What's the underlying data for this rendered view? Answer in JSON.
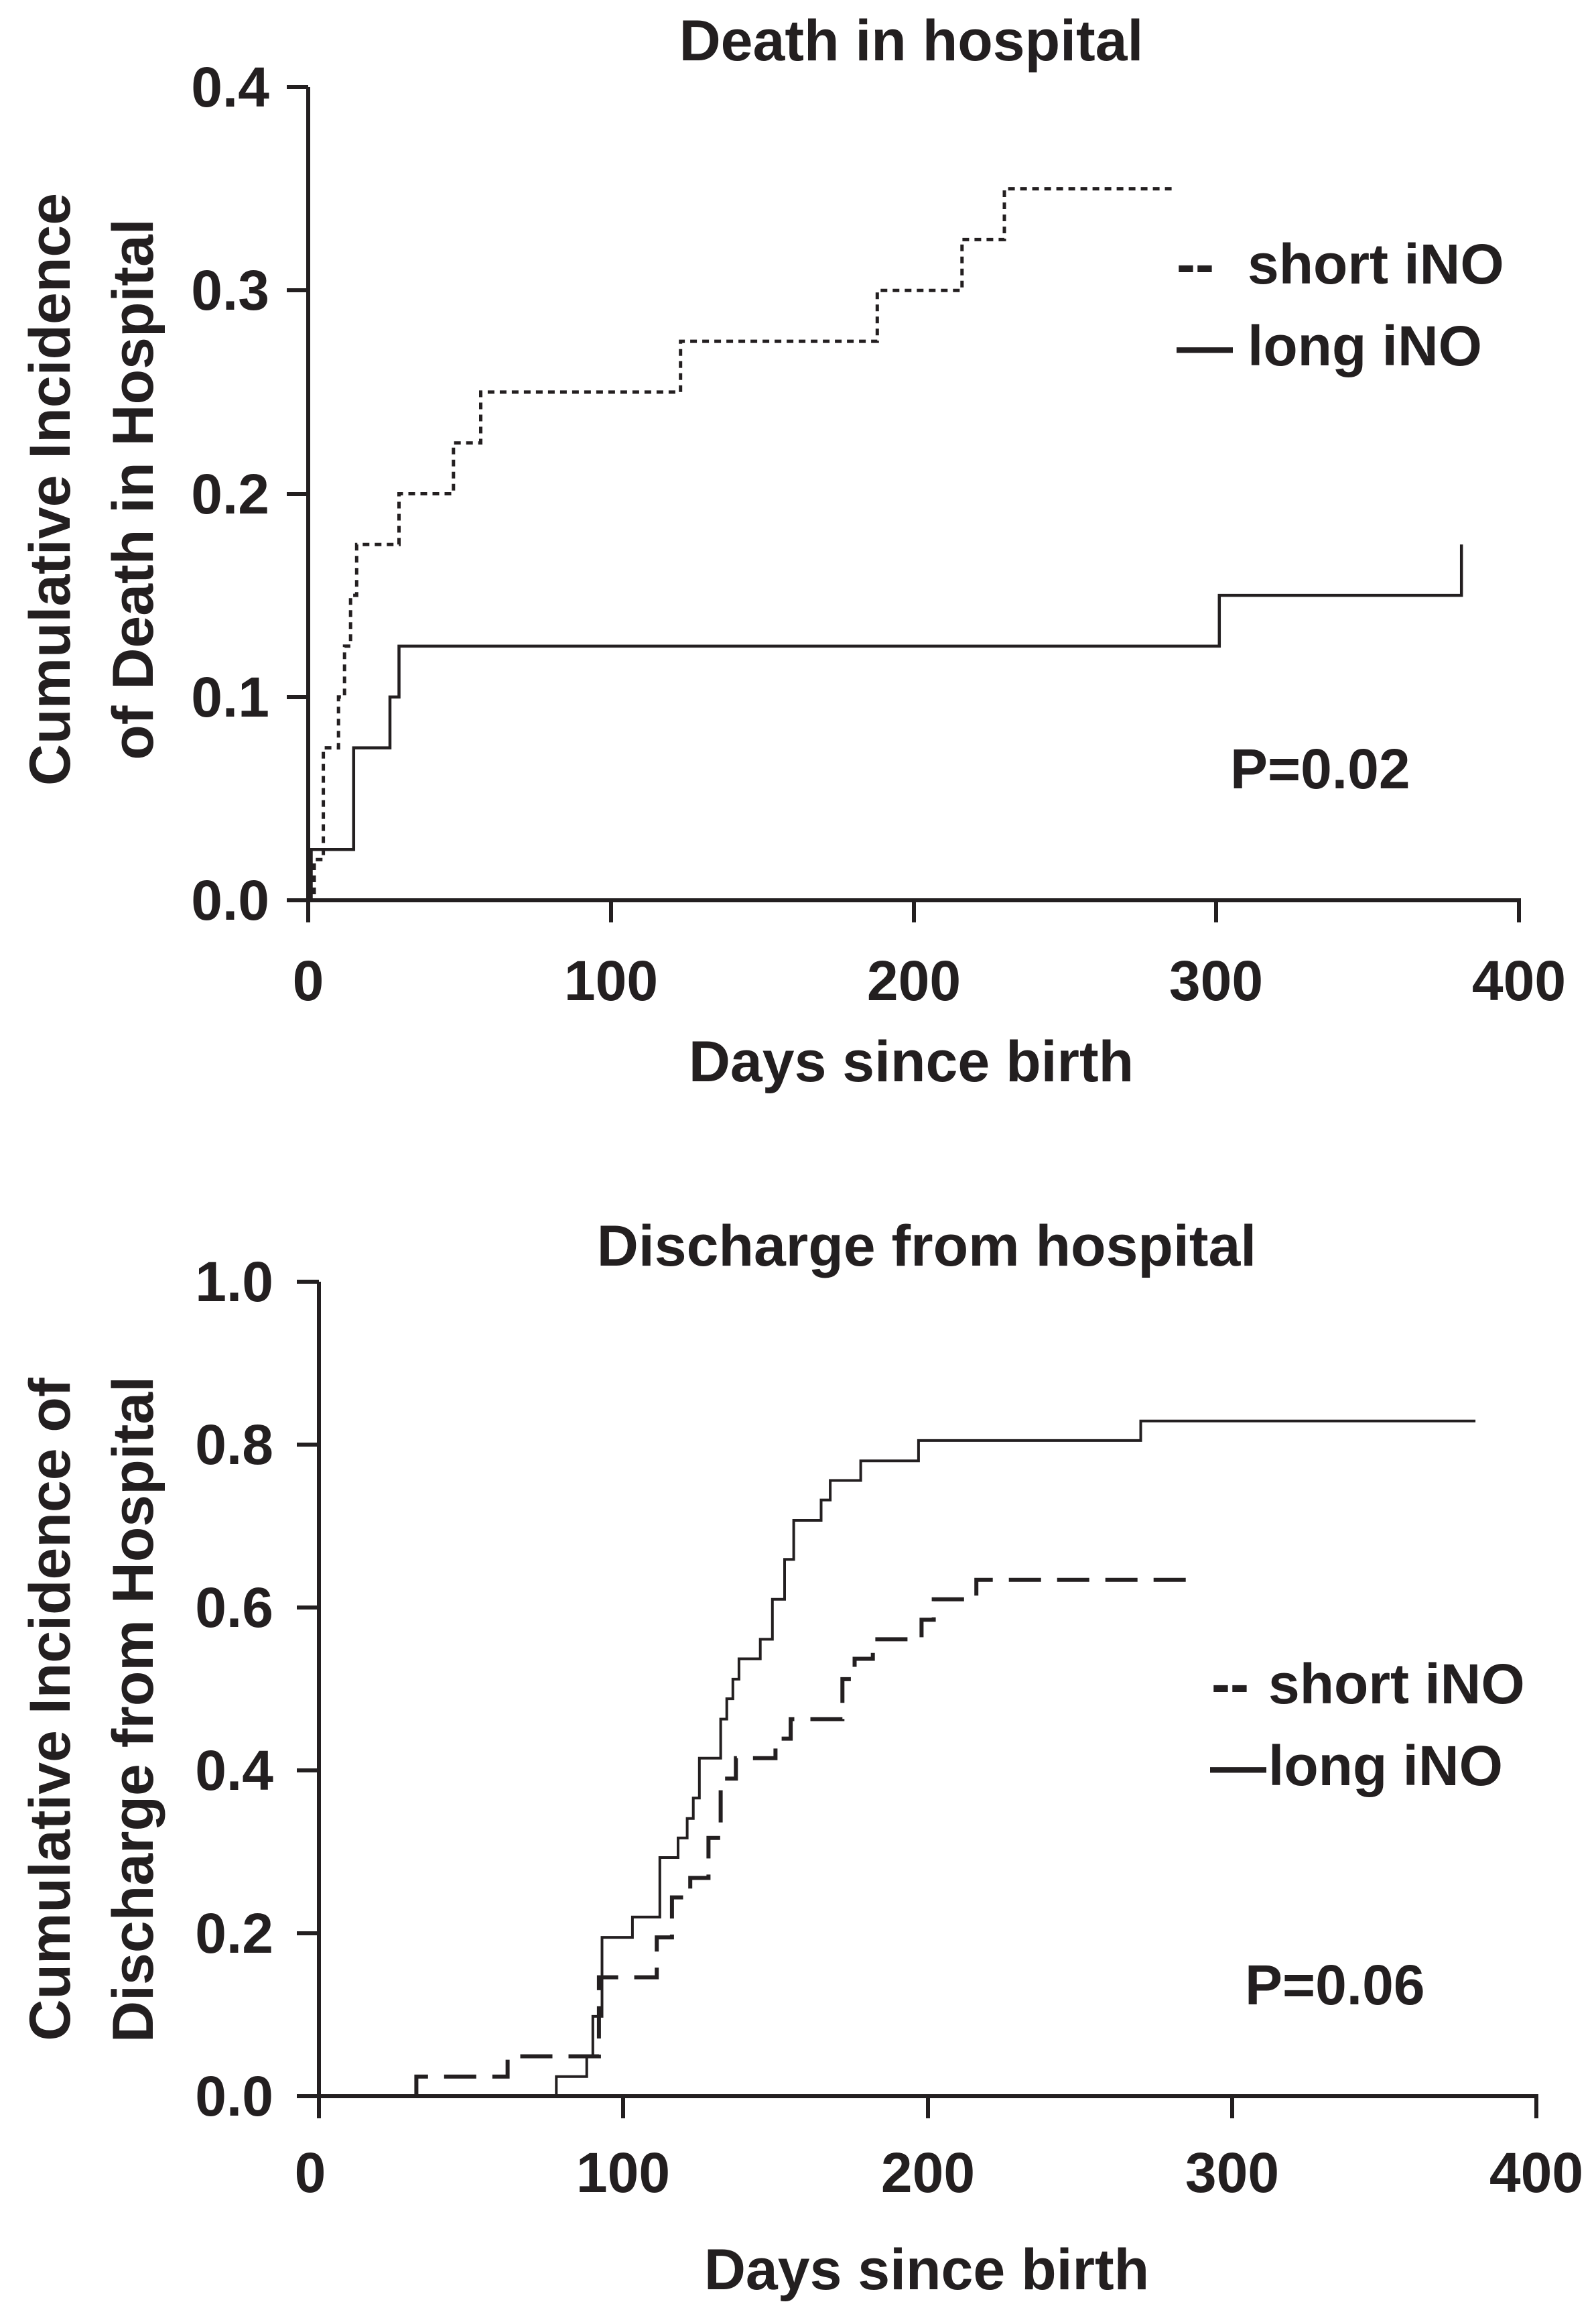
{
  "chart_data": [
    {
      "type": "line",
      "title": "Death in hospital",
      "xlabel": "Days since birth",
      "ylabel_lines": [
        "Cumulative Incidence",
        "of Death in Hospital"
      ],
      "xlim": [
        0,
        400
      ],
      "ylim": [
        0,
        0.4
      ],
      "xticks": [
        0,
        100,
        200,
        300,
        400
      ],
      "yticks": [
        0.0,
        0.1,
        0.2,
        0.3,
        0.4
      ],
      "xtick_labels": [
        "0",
        "100",
        "200",
        "300",
        "400"
      ],
      "ytick_labels": [
        "0.0",
        "0.1",
        "0.2",
        "0.3",
        "0.4"
      ],
      "grid": false,
      "legend": [
        {
          "symbol": "--",
          "text": "short iNO"
        },
        {
          "symbol": "—",
          "text": "long iNO"
        }
      ],
      "legend_position": "top-right",
      "annotation": "P=0.02",
      "series": [
        {
          "name": "short iNO",
          "style": "dotted",
          "steps": [
            [
              0,
              0.0
            ],
            [
              2,
              0.02
            ],
            [
              5,
              0.075
            ],
            [
              10,
              0.1
            ],
            [
              12,
              0.125
            ],
            [
              14,
              0.15
            ],
            [
              16,
              0.175
            ],
            [
              30,
              0.2
            ],
            [
              48,
              0.225
            ],
            [
              57,
              0.25
            ],
            [
              123,
              0.275
            ],
            [
              188,
              0.3
            ],
            [
              216,
              0.325
            ],
            [
              230,
              0.35
            ]
          ],
          "end_x": 286
        },
        {
          "name": "long iNO",
          "style": "solid",
          "steps": [
            [
              0,
              0.0
            ],
            [
              1,
              0.025
            ],
            [
              15,
              0.075
            ],
            [
              27,
              0.1
            ],
            [
              30,
              0.125
            ],
            [
              301,
              0.15
            ],
            [
              381,
              0.175
            ]
          ],
          "end_x": 381
        }
      ]
    },
    {
      "type": "line",
      "title": "Discharge from hospital",
      "xlabel": "Days since birth",
      "ylabel_lines": [
        "Cumulative Incidence of",
        "Discharge from Hospital"
      ],
      "xlim": [
        0,
        400
      ],
      "ylim": [
        0,
        1.0
      ],
      "xticks": [
        0,
        100,
        200,
        300,
        400
      ],
      "yticks": [
        0.0,
        0.2,
        0.4,
        0.6,
        0.8,
        1.0
      ],
      "xtick_labels": [
        "0",
        "100",
        "200",
        "300",
        "400"
      ],
      "ytick_labels": [
        "0.0",
        "0.2",
        "0.4",
        "0.6",
        "0.8",
        "1.0"
      ],
      "grid": false,
      "legend": [
        {
          "symbol": "--",
          "text": "short iNO"
        },
        {
          "symbol": "—",
          "text": "long iNO"
        }
      ],
      "legend_position": "right",
      "annotation": "P=0.06",
      "series": [
        {
          "name": "short iNO",
          "style": "dashed",
          "steps": [
            [
              0,
              0.0
            ],
            [
              32,
              0.024
            ],
            [
              62,
              0.049
            ],
            [
              92,
              0.146
            ],
            [
              111,
              0.195
            ],
            [
              116,
              0.244
            ],
            [
              122,
              0.268
            ],
            [
              128,
              0.317
            ],
            [
              132,
              0.39
            ],
            [
              137,
              0.415
            ],
            [
              150,
              0.439
            ],
            [
              155,
              0.463
            ],
            [
              172,
              0.512
            ],
            [
              176,
              0.537
            ],
            [
              182,
              0.561
            ],
            [
              198,
              0.585
            ],
            [
              202,
              0.61
            ],
            [
              216,
              0.634
            ]
          ],
          "end_x": 285
        },
        {
          "name": "long iNO",
          "style": "solid",
          "steps": [
            [
              78,
              0.0
            ],
            [
              78,
              0.024
            ],
            [
              88,
              0.049
            ],
            [
              90,
              0.098
            ],
            [
              93,
              0.195
            ],
            [
              103,
              0.22
            ],
            [
              112,
              0.293
            ],
            [
              118,
              0.317
            ],
            [
              121,
              0.341
            ],
            [
              123,
              0.366
            ],
            [
              125,
              0.415
            ],
            [
              132,
              0.463
            ],
            [
              134,
              0.488
            ],
            [
              136,
              0.512
            ],
            [
              138,
              0.537
            ],
            [
              145,
              0.561
            ],
            [
              149,
              0.61
            ],
            [
              153,
              0.659
            ],
            [
              156,
              0.707
            ],
            [
              165,
              0.732
            ],
            [
              168,
              0.756
            ],
            [
              178,
              0.78
            ],
            [
              197,
              0.805
            ],
            [
              270,
              0.829
            ]
          ],
          "end_x": 380
        }
      ]
    }
  ]
}
